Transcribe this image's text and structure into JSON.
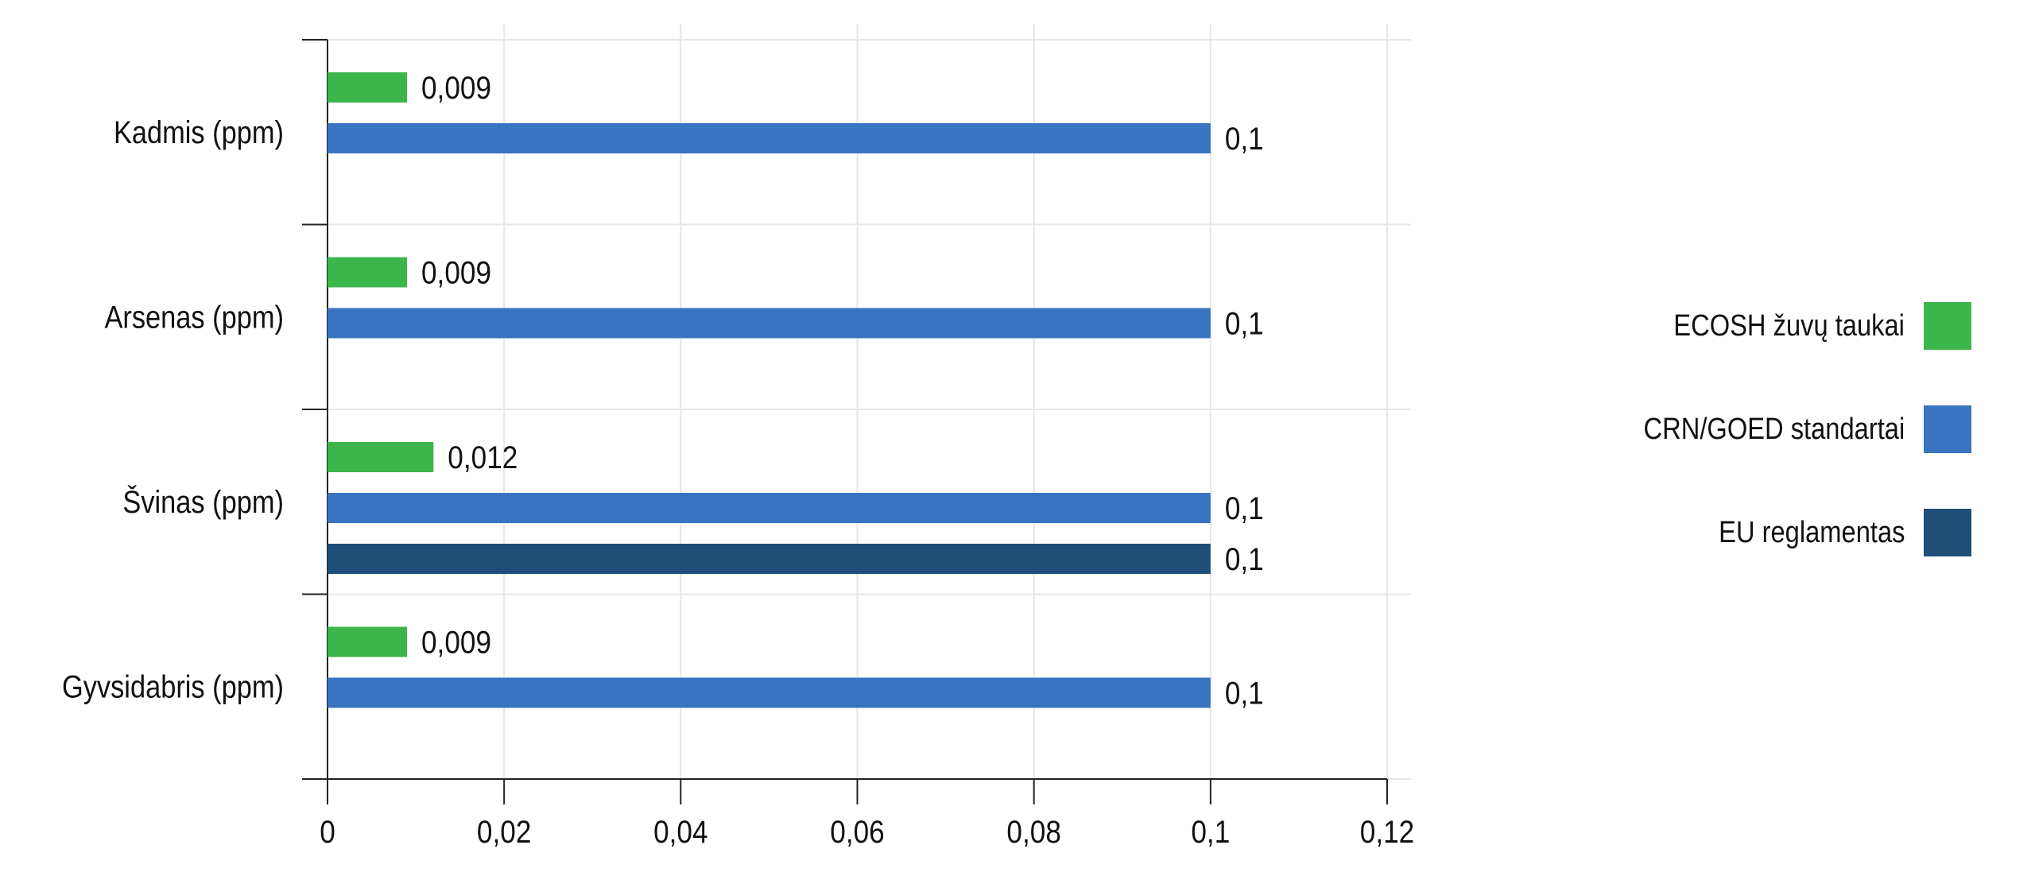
{
  "chart_data": {
    "type": "bar",
    "orientation": "horizontal",
    "categories": [
      "Kadmis (ppm)",
      "Arsenas (ppm)",
      "Švinas (ppm)",
      "Gyvsidabris (ppm)"
    ],
    "series": [
      {
        "name": "ECOSH žuvų taukai",
        "color": "#3cb54a",
        "values": [
          0.009,
          0.009,
          0.012,
          0.009
        ],
        "labels": [
          "0,009",
          "0,009",
          "0,012",
          "0,009"
        ]
      },
      {
        "name": "CRN/GOED standartai",
        "color": "#3874c0",
        "values": [
          0.1,
          0.1,
          0.1,
          0.1
        ],
        "labels": [
          "0,1",
          "0,1",
          "0,1",
          "0,1"
        ]
      },
      {
        "name": "EU reglamentas",
        "color": "#1f4e79",
        "values": [
          null,
          null,
          0.1,
          null
        ],
        "labels": [
          null,
          null,
          "0,1",
          null
        ]
      }
    ],
    "xlim": [
      0,
      0.12
    ],
    "xticks": [
      0,
      0.02,
      0.04,
      0.06,
      0.08,
      0.1,
      0.12
    ],
    "xtick_labels": [
      "0",
      "0,02",
      "0,04",
      "0,06",
      "0,08",
      "0,1",
      "0,12"
    ],
    "grid": true,
    "legend_position": "right",
    "title": "",
    "xlabel": "",
    "ylabel": ""
  }
}
